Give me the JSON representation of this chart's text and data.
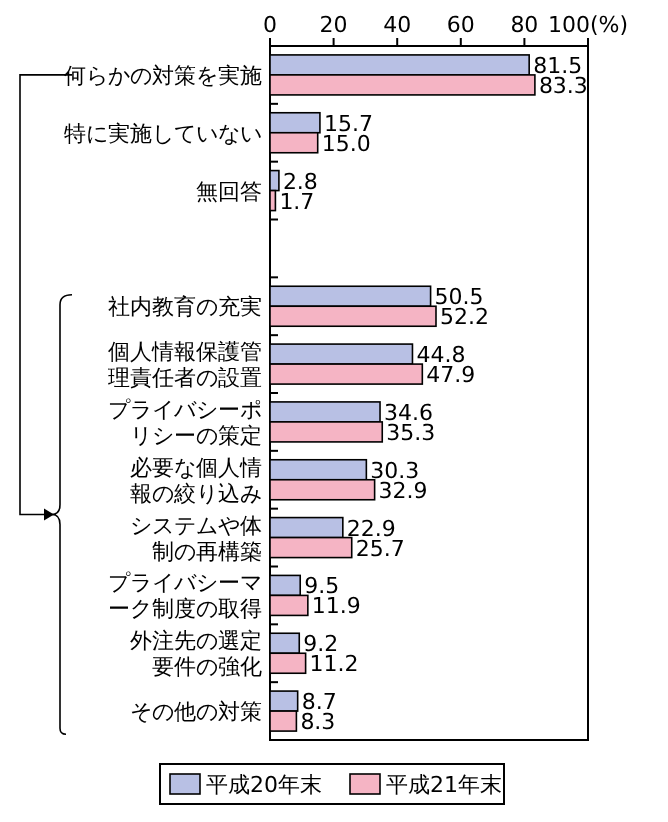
{
  "chart_data": {
    "type": "bar",
    "orientation": "horizontal",
    "categories": [
      "何らかの対策を実施",
      "特に実施していない",
      "無回答",
      null,
      "社内教育の充実",
      "個人情報保護管理責任者の設置",
      "プライバシーポリシーの策定",
      "必要な個人情報の絞り込み",
      "システムや体制の再構築",
      "プライバシーマーク制度の取得",
      "外注先の選定要件の強化",
      "その他の対策"
    ],
    "series": [
      {
        "name": "平成20年末",
        "color": "#b8c0e4",
        "values": [
          81.5,
          15.7,
          2.8,
          null,
          50.5,
          44.8,
          34.6,
          30.3,
          22.9,
          9.5,
          9.2,
          8.7
        ],
        "value_labels": [
          "81.5",
          "15.7",
          "2.8",
          null,
          "50.5",
          "44.8",
          "34.6",
          "30.3",
          "22.9",
          "9.5",
          "9.2",
          "8.7"
        ]
      },
      {
        "name": "平成21年末",
        "color": "#f5b4c4",
        "values": [
          83.3,
          15.0,
          1.7,
          null,
          52.2,
          47.9,
          35.3,
          32.9,
          25.7,
          11.9,
          11.2,
          8.3
        ],
        "value_labels": [
          "83.3",
          "15.0",
          "1.7",
          null,
          "52.2",
          "47.9",
          "35.3",
          "32.9",
          "25.7",
          "11.9",
          "11.2",
          "8.3"
        ]
      }
    ],
    "xlim": [
      0,
      100
    ],
    "xticks": [
      0,
      20,
      40,
      60,
      80,
      {
        "value": 100,
        "label": "100(%)"
      }
    ],
    "legend": "bottom",
    "grid": false
  }
}
